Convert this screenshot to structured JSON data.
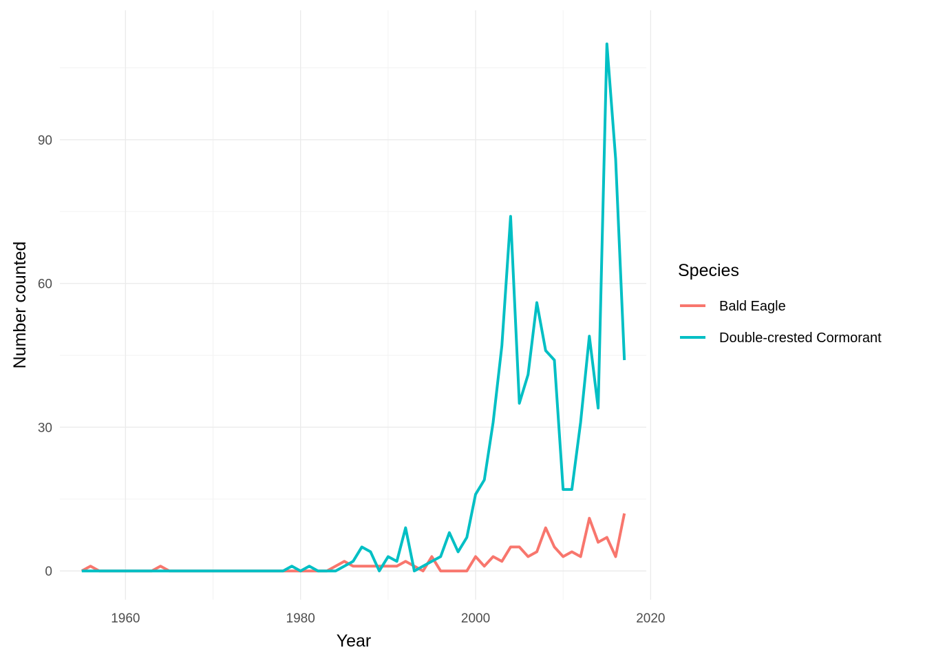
{
  "chart_data": {
    "type": "line",
    "xlabel": "Year",
    "ylabel": "Number counted",
    "xlim": [
      1952.5,
      2019.5
    ],
    "ylim": [
      -6,
      117
    ],
    "x_ticks": [
      1960,
      1980,
      2000,
      2020
    ],
    "y_ticks": [
      0,
      30,
      60,
      90
    ],
    "x_minor": [
      1950,
      1970,
      1990,
      2010
    ],
    "y_minor": [
      15,
      45,
      75,
      105
    ],
    "grid": true,
    "legend_title": "Species",
    "legend_position": "right",
    "series": [
      {
        "name": "Bald Eagle",
        "color": "#F8766D",
        "x": [
          1955,
          1956,
          1957,
          1958,
          1959,
          1960,
          1961,
          1962,
          1963,
          1964,
          1965,
          1966,
          1967,
          1968,
          1969,
          1970,
          1971,
          1972,
          1973,
          1974,
          1975,
          1976,
          1977,
          1978,
          1979,
          1980,
          1981,
          1982,
          1983,
          1984,
          1985,
          1986,
          1987,
          1988,
          1989,
          1990,
          1991,
          1992,
          1993,
          1994,
          1995,
          1996,
          1997,
          1998,
          1999,
          2000,
          2001,
          2002,
          2003,
          2004,
          2005,
          2006,
          2007,
          2008,
          2009,
          2010,
          2011,
          2012,
          2013,
          2014,
          2015,
          2016,
          2017
        ],
        "values": [
          0,
          1,
          0,
          0,
          0,
          0,
          0,
          0,
          0,
          1,
          0,
          0,
          0,
          0,
          0,
          0,
          0,
          0,
          0,
          0,
          0,
          0,
          0,
          0,
          0,
          0,
          0,
          0,
          0,
          1,
          2,
          1,
          1,
          1,
          1,
          1,
          1,
          2,
          1,
          0,
          3,
          0,
          0,
          0,
          0,
          3,
          1,
          3,
          2,
          5,
          5,
          3,
          4,
          9,
          5,
          3,
          4,
          3,
          11,
          6,
          7,
          3,
          12
        ]
      },
      {
        "name": "Double-crested Cormorant",
        "color": "#00BFC4",
        "x": [
          1955,
          1956,
          1957,
          1958,
          1959,
          1960,
          1961,
          1962,
          1963,
          1964,
          1965,
          1966,
          1967,
          1968,
          1969,
          1970,
          1971,
          1972,
          1973,
          1974,
          1975,
          1976,
          1977,
          1978,
          1979,
          1980,
          1981,
          1982,
          1983,
          1984,
          1985,
          1986,
          1987,
          1988,
          1989,
          1990,
          1991,
          1992,
          1993,
          1994,
          1995,
          1996,
          1997,
          1998,
          1999,
          2000,
          2001,
          2002,
          2003,
          2004,
          2005,
          2006,
          2007,
          2008,
          2009,
          2010,
          2011,
          2012,
          2013,
          2014,
          2015,
          2016,
          2017
        ],
        "values": [
          0,
          0,
          0,
          0,
          0,
          0,
          0,
          0,
          0,
          0,
          0,
          0,
          0,
          0,
          0,
          0,
          0,
          0,
          0,
          0,
          0,
          0,
          0,
          0,
          1,
          0,
          1,
          0,
          0,
          0,
          1,
          2,
          5,
          4,
          0,
          3,
          2,
          9,
          0,
          1,
          2,
          3,
          8,
          4,
          7,
          16,
          19,
          31,
          47,
          74,
          35,
          41,
          56,
          46,
          44,
          17,
          17,
          31,
          49,
          34,
          110,
          86,
          44
        ]
      }
    ]
  }
}
